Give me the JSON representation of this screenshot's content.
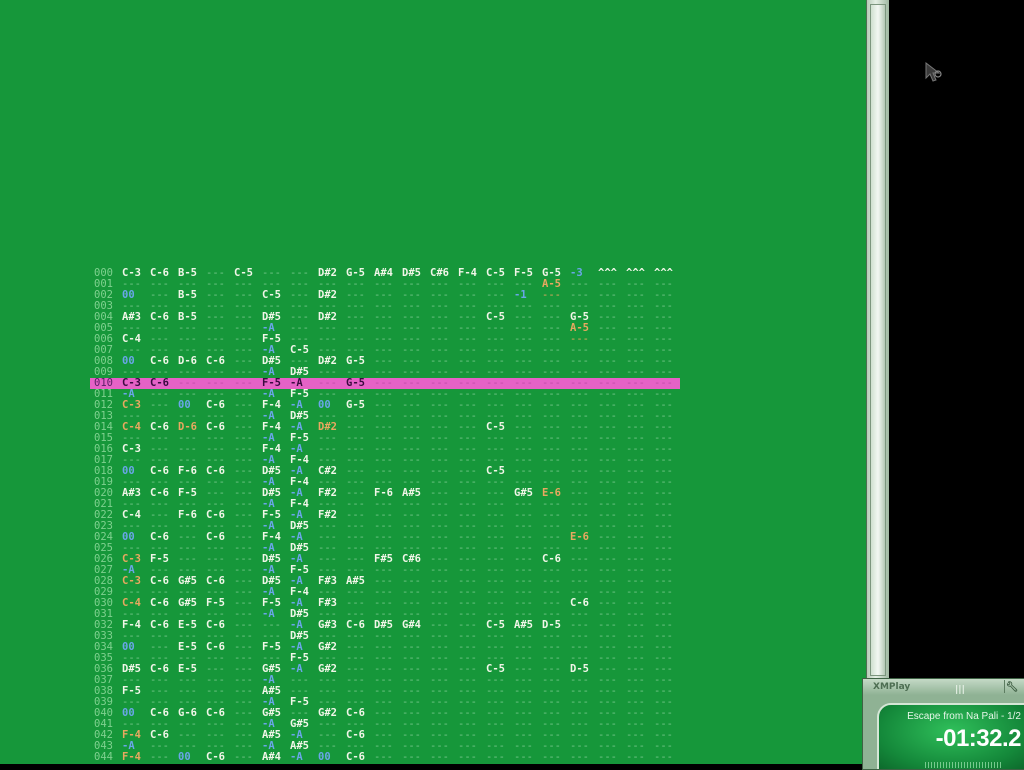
{
  "colors": {
    "background": "#16973a",
    "highlight_row": "#e562c6",
    "note": "#f1f6e8",
    "empty": "#74c78a",
    "effect": "#6aa6e8",
    "accent": "#e8a860"
  },
  "pattern": {
    "current_row": "010",
    "accent_cells": [
      "001:15",
      "002:15",
      "005:16",
      "006:16",
      "012:0",
      "014:0",
      "014:2",
      "014:7",
      "020:15",
      "024:16",
      "026:0",
      "028:0",
      "030:0",
      "042:0",
      "044:0"
    ],
    "rows": [
      {
        "n": "000",
        "c": "C-3 C-6 B-5 --- C-5 --- --- D#2 G-5 A#4 D#5 C#6 F-4 C-5 F-5 G-5 -3 ^^^ ^^^ ^^^"
      },
      {
        "n": "001",
        "c": "--- --- --- --- --- --- --- --- --- --- --- --- --- --- --- A-5 --- --- --- ---"
      },
      {
        "n": "002",
        "c": "00 --- B-5 --- --- C-5 --- D#2 --- --- --- --- --- --- -1 --- --- --- --- ---"
      },
      {
        "n": "003",
        "c": "--- --- --- --- --- --- --- --- --- --- --- --- --- --- --- --- --- --- --- ---"
      },
      {
        "n": "004",
        "c": "A#3 C-6 B-5 --- --- D#5 --- D#2 --- --- --- --- --- C-5 --- --- G-5 --- --- ---"
      },
      {
        "n": "005",
        "c": "--- --- --- --- --- -A --- --- --- --- --- --- --- --- --- --- A-5 --- --- ---"
      },
      {
        "n": "006",
        "c": "C-4 --- --- --- --- F-5 --- --- --- --- --- --- --- --- --- --- --- --- --- ---"
      },
      {
        "n": "007",
        "c": "--- --- --- --- --- -A C-5 --- --- --- --- --- --- --- --- --- --- --- --- ---"
      },
      {
        "n": "008",
        "c": "00 C-6 D-6 C-6 --- D#5 --- D#2 G-5 --- --- --- --- --- --- --- --- --- --- ---"
      },
      {
        "n": "009",
        "c": "--- --- --- --- --- -A D#5 --- --- --- --- --- --- --- --- --- --- --- --- ---"
      },
      {
        "n": "010",
        "c": "C-3 C-6 --- --- --- F-5 -A --- G-5 --- --- --- --- --- --- --- --- --- --- ---"
      },
      {
        "n": "011",
        "c": "-A --- --- --- --- -A F-5 --- --- --- --- --- --- --- --- --- --- --- --- ---"
      },
      {
        "n": "012",
        "c": "C-3 --- 00 C-6 --- F-4 -A 00 G-5 --- --- --- --- --- --- --- --- --- --- ---"
      },
      {
        "n": "013",
        "c": "--- --- --- --- --- -A D#5 --- --- --- --- --- --- --- --- --- --- --- --- ---"
      },
      {
        "n": "014",
        "c": "C-4 C-6 D-6 C-6 --- F-4 -A D#2 --- --- --- --- --- C-5 --- --- --- --- --- ---"
      },
      {
        "n": "015",
        "c": "--- --- --- --- --- -A F-5 --- --- --- --- --- --- --- --- --- --- --- --- ---"
      },
      {
        "n": "016",
        "c": "C-3 --- --- --- --- F-4 -A --- --- --- --- --- --- --- --- --- --- --- --- ---"
      },
      {
        "n": "017",
        "c": "--- --- --- --- --- -A F-4 --- --- --- --- --- --- --- --- --- --- --- --- ---"
      },
      {
        "n": "018",
        "c": "00 C-6 F-6 C-6 --- D#5 -A C#2 --- --- --- --- --- C-5 --- --- --- --- --- ---"
      },
      {
        "n": "019",
        "c": "--- --- --- --- --- -A F-4 --- --- --- --- --- --- --- --- --- --- --- --- ---"
      },
      {
        "n": "020",
        "c": "A#3 C-6 F-5 --- --- D#5 -A F#2 --- F-6 A#5 --- --- --- G#5 E-6 --- --- --- ---"
      },
      {
        "n": "021",
        "c": "--- --- --- --- --- -A F-4 --- --- --- --- --- --- --- --- --- --- --- --- ---"
      },
      {
        "n": "022",
        "c": "C-4 --- F-6 C-6 --- F-5 -A F#2 --- --- --- --- --- --- --- --- --- --- --- ---"
      },
      {
        "n": "023",
        "c": "--- --- --- --- --- -A D#5 --- --- --- --- --- --- --- --- --- --- --- --- ---"
      },
      {
        "n": "024",
        "c": "00 C-6 --- C-6 --- F-4 -A --- --- --- --- --- --- --- --- --- E-6 --- --- ---"
      },
      {
        "n": "025",
        "c": "--- --- --- --- --- -A D#5 --- --- --- --- --- --- --- --- --- --- --- --- ---"
      },
      {
        "n": "026",
        "c": "C-3 F-5 --- --- --- D#5 -A --- --- F#5 C#6 --- --- --- --- C-6 --- --- --- ---"
      },
      {
        "n": "027",
        "c": "-A --- --- --- --- -A F-5 --- --- --- --- --- --- --- --- --- --- --- --- ---"
      },
      {
        "n": "028",
        "c": "C-3 C-6 G#5 C-6 --- D#5 -A F#3 A#5 --- --- --- --- --- --- --- --- --- --- ---"
      },
      {
        "n": "029",
        "c": "--- --- --- --- --- -A F-4 --- --- --- --- --- --- --- --- --- --- --- --- ---"
      },
      {
        "n": "030",
        "c": "C-4 C-6 G#5 F-5 --- F-5 -A F#3 --- --- --- --- --- --- --- --- C-6 --- --- ---"
      },
      {
        "n": "031",
        "c": "--- --- --- --- --- -A D#5 --- --- --- --- --- --- --- --- --- --- --- --- ---"
      },
      {
        "n": "032",
        "c": "F-4 C-6 E-5 C-6 --- --- -A G#3 C-6 D#5 G#4 --- --- C-5 A#5 D-5 --- --- --- ---"
      },
      {
        "n": "033",
        "c": "--- --- --- --- --- --- D#5 --- --- --- --- --- --- --- --- --- --- --- --- ---"
      },
      {
        "n": "034",
        "c": "00 --- E-5 C-6 --- F-5 -A G#2 --- --- --- --- --- --- --- --- --- --- --- ---"
      },
      {
        "n": "035",
        "c": "--- --- --- --- --- --- F-5 --- --- --- --- --- --- --- --- --- --- --- --- ---"
      },
      {
        "n": "036",
        "c": "D#5 C-6 E-5 --- --- G#5 -A G#2 --- --- --- --- --- C-5 --- --- D-5 --- --- ---"
      },
      {
        "n": "037",
        "c": "--- --- --- --- --- -A --- --- --- --- --- --- --- --- --- --- --- --- --- ---"
      },
      {
        "n": "038",
        "c": "F-5 --- --- --- --- A#5 --- --- --- --- --- --- --- --- --- --- --- --- --- ---"
      },
      {
        "n": "039",
        "c": "--- --- --- --- --- -A F-5 --- --- --- --- --- --- --- --- --- --- --- --- ---"
      },
      {
        "n": "040",
        "c": "00 C-6 G-6 C-6 --- G#5 --- G#2 C-6 --- --- --- --- --- --- --- --- --- --- ---"
      },
      {
        "n": "041",
        "c": "--- --- --- --- --- -A G#5 --- --- --- --- --- --- --- --- --- --- --- --- ---"
      },
      {
        "n": "042",
        "c": "F-4 C-6 --- --- --- A#5 -A --- C-6 --- --- --- --- --- --- --- --- --- --- ---"
      },
      {
        "n": "043",
        "c": "-A --- --- --- --- -A A#5 --- --- --- --- --- --- --- --- --- --- --- --- ---"
      },
      {
        "n": "044",
        "c": "F-4 --- 00 C-6 --- A#4 -A 00 C-6 --- --- --- --- --- --- --- --- --- --- ---"
      }
    ]
  },
  "player": {
    "title": "XMPlay",
    "grip_icon": "grip-icon",
    "wrench_icon": "wrench-icon",
    "track": "Escape from Na Pali - 1/2",
    "time": "-01:32.2"
  },
  "cursor_icon": "mouse-pointer-icon"
}
